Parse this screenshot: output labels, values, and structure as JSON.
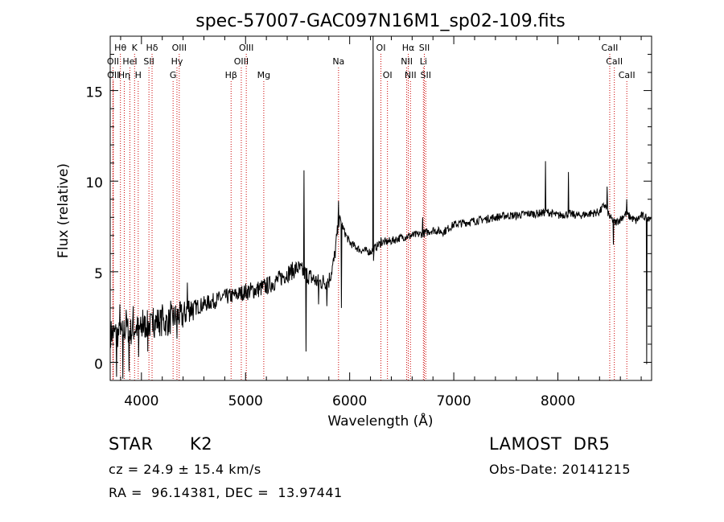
{
  "chart_data": {
    "type": "line",
    "title": "spec-57007-GAC097N16M1_sp02-109.fits",
    "xlabel": "Wavelength (Å)",
    "ylabel": "Flux (relative)",
    "xlim": [
      3700,
      8900
    ],
    "ylim": [
      -1,
      18
    ],
    "xticks": [
      4000,
      5000,
      6000,
      7000,
      8000
    ],
    "yticks": [
      0,
      5,
      10,
      15
    ],
    "xtick_labels": [
      "4000",
      "5000",
      "6000",
      "7000",
      "8000"
    ],
    "ytick_labels": [
      "0",
      "5",
      "10",
      "15"
    ],
    "grid": false,
    "line_color": "#000000",
    "marker_color": "#cc0000",
    "spectrum_points": [
      [
        3750,
        1.6
      ],
      [
        3800,
        1.5
      ],
      [
        3850,
        1.9
      ],
      [
        3900,
        1.7
      ],
      [
        3950,
        1.9
      ],
      [
        4000,
        1.8
      ],
      [
        4050,
        2.1
      ],
      [
        4100,
        2.0
      ],
      [
        4150,
        2.3
      ],
      [
        4200,
        2.2
      ],
      [
        4250,
        2.2
      ],
      [
        4300,
        2.4
      ],
      [
        4350,
        2.6
      ],
      [
        4400,
        2.5
      ],
      [
        4450,
        3.0
      ],
      [
        4500,
        3.0
      ],
      [
        4600,
        3.2
      ],
      [
        4700,
        3.4
      ],
      [
        4800,
        3.6
      ],
      [
        4900,
        3.7
      ],
      [
        5000,
        3.9
      ],
      [
        5100,
        4.0
      ],
      [
        5200,
        4.2
      ],
      [
        5300,
        4.5
      ],
      [
        5400,
        4.9
      ],
      [
        5500,
        5.2
      ],
      [
        5600,
        4.8
      ],
      [
        5700,
        4.4
      ],
      [
        5800,
        4.5
      ],
      [
        5850,
        5.6
      ],
      [
        5900,
        8.0
      ],
      [
        5950,
        7.2
      ],
      [
        6000,
        6.6
      ],
      [
        6100,
        6.2
      ],
      [
        6200,
        6.1
      ],
      [
        6300,
        6.6
      ],
      [
        6400,
        6.7
      ],
      [
        6500,
        6.9
      ],
      [
        6600,
        7.0
      ],
      [
        6700,
        7.1
      ],
      [
        6800,
        7.3
      ],
      [
        6900,
        7.2
      ],
      [
        7000,
        7.6
      ],
      [
        7100,
        7.7
      ],
      [
        7200,
        7.8
      ],
      [
        7300,
        7.9
      ],
      [
        7400,
        8.0
      ],
      [
        7500,
        8.1
      ],
      [
        7600,
        8.1
      ],
      [
        7700,
        8.2
      ],
      [
        7800,
        8.2
      ],
      [
        7900,
        8.3
      ],
      [
        8000,
        8.1
      ],
      [
        8100,
        8.2
      ],
      [
        8200,
        8.1
      ],
      [
        8300,
        8.2
      ],
      [
        8400,
        8.3
      ],
      [
        8450,
        8.7
      ],
      [
        8500,
        8.0
      ],
      [
        8550,
        7.7
      ],
      [
        8600,
        7.9
      ],
      [
        8650,
        8.2
      ],
      [
        8700,
        8.0
      ],
      [
        8750,
        7.8
      ],
      [
        8800,
        8.1
      ],
      [
        8850,
        8.0
      ]
    ],
    "spikes": [
      [
        3760,
        -0.8
      ],
      [
        3790,
        3.2
      ],
      [
        3820,
        -0.9
      ],
      [
        3850,
        2.9
      ],
      [
        3880,
        -0.5
      ],
      [
        3920,
        3.1
      ],
      [
        3970,
        0.3
      ],
      [
        4010,
        2.9
      ],
      [
        4060,
        0.6
      ],
      [
        4110,
        3.0
      ],
      [
        4200,
        3.2
      ],
      [
        4280,
        3.4
      ],
      [
        4340,
        1.3
      ],
      [
        4440,
        4.4
      ],
      [
        5560,
        10.6
      ],
      [
        5580,
        0.6
      ],
      [
        5700,
        3.2
      ],
      [
        5780,
        3.1
      ],
      [
        5890,
        8.9
      ],
      [
        5920,
        3.0
      ],
      [
        6225,
        18.0
      ],
      [
        6228,
        5.6
      ],
      [
        6300,
        6.9
      ],
      [
        6700,
        8.0
      ],
      [
        7880,
        11.1
      ],
      [
        8100,
        10.5
      ],
      [
        8470,
        9.7
      ],
      [
        8530,
        6.5
      ],
      [
        8660,
        9.0
      ],
      [
        8850,
        -0.1
      ]
    ],
    "lines_row1": [
      {
        "label": "Hθ",
        "x": 3798
      },
      {
        "label": "K",
        "x": 3934
      },
      {
        "label": "Hδ",
        "x": 4102
      },
      {
        "label": "OIII",
        "x": 4363
      },
      {
        "label": "OIII",
        "x": 5007
      },
      {
        "label": "OI",
        "x": 6300
      },
      {
        "label": "Hα",
        "x": 6563
      },
      {
        "label": "SII",
        "x": 6717
      },
      {
        "label": "CaII",
        "x": 8498
      }
    ],
    "lines_row2": [
      {
        "label": "OII",
        "x": 3727
      },
      {
        "label": "HeI",
        "x": 3889
      },
      {
        "label": "SII",
        "x": 4072
      },
      {
        "label": "Hγ",
        "x": 4341
      },
      {
        "label": "OIII",
        "x": 4959
      },
      {
        "label": "Na",
        "x": 5893
      },
      {
        "label": "NII",
        "x": 6548
      },
      {
        "label": "Li",
        "x": 6708
      },
      {
        "label": "CaII",
        "x": 8542
      }
    ],
    "lines_row3": [
      {
        "label": "OII",
        "x": 3729
      },
      {
        "label": "Hη",
        "x": 3835
      },
      {
        "label": "H",
        "x": 3969
      },
      {
        "label": "G",
        "x": 4304
      },
      {
        "label": "Hβ",
        "x": 4861
      },
      {
        "label": "Mg",
        "x": 5175
      },
      {
        "label": "OI",
        "x": 6363
      },
      {
        "label": "NII",
        "x": 6584
      },
      {
        "label": "SII",
        "x": 6731
      },
      {
        "label": "CaII",
        "x": 8662
      }
    ]
  },
  "info": {
    "class_label": "STAR",
    "subclass": "K2",
    "cz": "cz = 24.9 ± 15.4 km/s",
    "coords": "RA =  96.14381, DEC =  13.97441",
    "survey": "LAMOST  DR5",
    "obs_date": "Obs-Date: 20141215"
  }
}
